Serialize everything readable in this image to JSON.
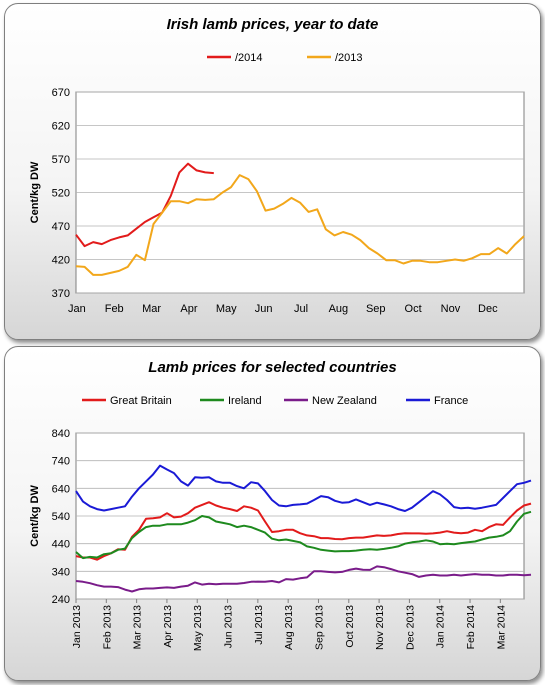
{
  "chart_data": [
    {
      "type": "line",
      "title": "Irish lamb prices, year to date",
      "ylabel": "Cent/kg DW",
      "xlabel": "",
      "ylim": [
        370,
        670
      ],
      "yticks": [
        370,
        420,
        470,
        520,
        570,
        620,
        670
      ],
      "x_tick_labels": [
        "Jan",
        "Feb",
        "Mar",
        "Apr",
        "May",
        "Jun",
        "Jul",
        "Aug",
        "Sep",
        "Oct",
        "Nov",
        "Dec"
      ],
      "x_unit": "week of year",
      "xlim": [
        1,
        53
      ],
      "grid": "horizontal",
      "legend_position": "top",
      "series": [
        {
          "name": "/2014",
          "color": "#e21b1b",
          "x": [
            1,
            2,
            3,
            4,
            5,
            6,
            7,
            8,
            9,
            10,
            11,
            12,
            13,
            14,
            15,
            16,
            17
          ],
          "values": [
            457,
            440,
            446,
            443,
            449,
            453,
            456,
            466,
            476,
            483,
            490,
            515,
            550,
            563,
            553,
            550,
            549
          ]
        },
        {
          "name": "/2013",
          "color": "#f2a71b",
          "x": [
            1,
            2,
            3,
            4,
            5,
            6,
            7,
            8,
            9,
            10,
            11,
            12,
            13,
            14,
            15,
            16,
            17,
            18,
            19,
            20,
            21,
            22,
            23,
            24,
            25,
            26,
            27,
            28,
            29,
            30,
            31,
            32,
            33,
            34,
            35,
            36,
            37,
            38,
            39,
            40,
            41,
            42,
            43,
            44,
            45,
            46,
            47,
            48,
            49,
            50,
            51,
            52,
            53
          ],
          "values": [
            410,
            409,
            397,
            397,
            400,
            403,
            409,
            427,
            419,
            473,
            490,
            507,
            507,
            504,
            510,
            509,
            510,
            520,
            528,
            546,
            540,
            522,
            493,
            496,
            503,
            512,
            505,
            491,
            495,
            465,
            456,
            461,
            457,
            449,
            437,
            429,
            419,
            419,
            414,
            418,
            418,
            416,
            416,
            418,
            420,
            418,
            422,
            428,
            428,
            437,
            429,
            443,
            455
          ]
        }
      ]
    },
    {
      "type": "line",
      "title": "Lamb prices for selected countries",
      "ylabel": "Cent/kg DW",
      "xlabel": "",
      "ylim": [
        240,
        840
      ],
      "yticks": [
        240,
        340,
        440,
        540,
        640,
        740,
        840
      ],
      "x_tick_labels": [
        "Jan 2013",
        "Feb 2013",
        "Mar 2013",
        "Apr 2013",
        "May 2013",
        "Jun 2013",
        "Jul 2013",
        "Aug 2013",
        "Sep 2013",
        "Oct 2013",
        "Nov 2013",
        "Dec 2013",
        "Jan 2014",
        "Feb 2014",
        "Mar 2014"
      ],
      "x_unit": "week from Jan 2013",
      "xlim": [
        0,
        64
      ],
      "grid": "horizontal",
      "legend_position": "top",
      "series": [
        {
          "name": "Great Britain",
          "color": "#e21b1b",
          "values": [
            395,
            390,
            390,
            382,
            395,
            405,
            420,
            418,
            465,
            490,
            530,
            532,
            535,
            550,
            535,
            538,
            550,
            570,
            580,
            590,
            578,
            570,
            565,
            558,
            575,
            570,
            560,
            520,
            482,
            485,
            490,
            490,
            478,
            470,
            467,
            460,
            460,
            457,
            456,
            460,
            462,
            462,
            466,
            470,
            468,
            470,
            475,
            478,
            477,
            477,
            476,
            477,
            480,
            485,
            480,
            478,
            480,
            490,
            485,
            500,
            510,
            508,
            535,
            560,
            578,
            585
          ]
        },
        {
          "name": "Ireland",
          "color": "#1e8a1e",
          "values": [
            410,
            388,
            392,
            390,
            402,
            405,
            418,
            422,
            460,
            482,
            500,
            505,
            505,
            510,
            510,
            510,
            516,
            525,
            540,
            535,
            520,
            515,
            510,
            500,
            505,
            500,
            490,
            480,
            458,
            452,
            455,
            450,
            445,
            430,
            425,
            418,
            415,
            412,
            413,
            413,
            415,
            418,
            420,
            418,
            421,
            425,
            430,
            440,
            445,
            448,
            452,
            448,
            438,
            440,
            438,
            442,
            445,
            448,
            455,
            462,
            465,
            470,
            485,
            520,
            548,
            555
          ]
        },
        {
          "name": "New Zealand",
          "color": "#7a1c8a",
          "values": [
            305,
            302,
            297,
            290,
            285,
            285,
            283,
            274,
            267,
            275,
            278,
            278,
            280,
            282,
            280,
            285,
            288,
            300,
            292,
            295,
            293,
            295,
            295,
            295,
            298,
            302,
            303,
            302,
            305,
            300,
            312,
            310,
            315,
            318,
            340,
            340,
            338,
            336,
            338,
            345,
            350,
            346,
            345,
            358,
            355,
            348,
            340,
            335,
            330,
            320,
            325,
            328,
            325,
            325,
            328,
            325,
            328,
            330,
            328,
            328,
            325,
            325,
            328,
            328,
            326,
            328
          ]
        },
        {
          "name": "France",
          "color": "#1a1ad6",
          "values": [
            630,
            592,
            575,
            565,
            560,
            565,
            570,
            575,
            610,
            640,
            665,
            690,
            722,
            708,
            695,
            665,
            650,
            680,
            678,
            680,
            665,
            660,
            660,
            648,
            640,
            662,
            658,
            630,
            598,
            578,
            575,
            580,
            582,
            585,
            598,
            612,
            608,
            595,
            588,
            590,
            600,
            590,
            580,
            588,
            582,
            575,
            565,
            558,
            570,
            590,
            610,
            630,
            618,
            598,
            572,
            568,
            570,
            566,
            570,
            575,
            580,
            605,
            630,
            655,
            660,
            668
          ]
        }
      ]
    }
  ]
}
